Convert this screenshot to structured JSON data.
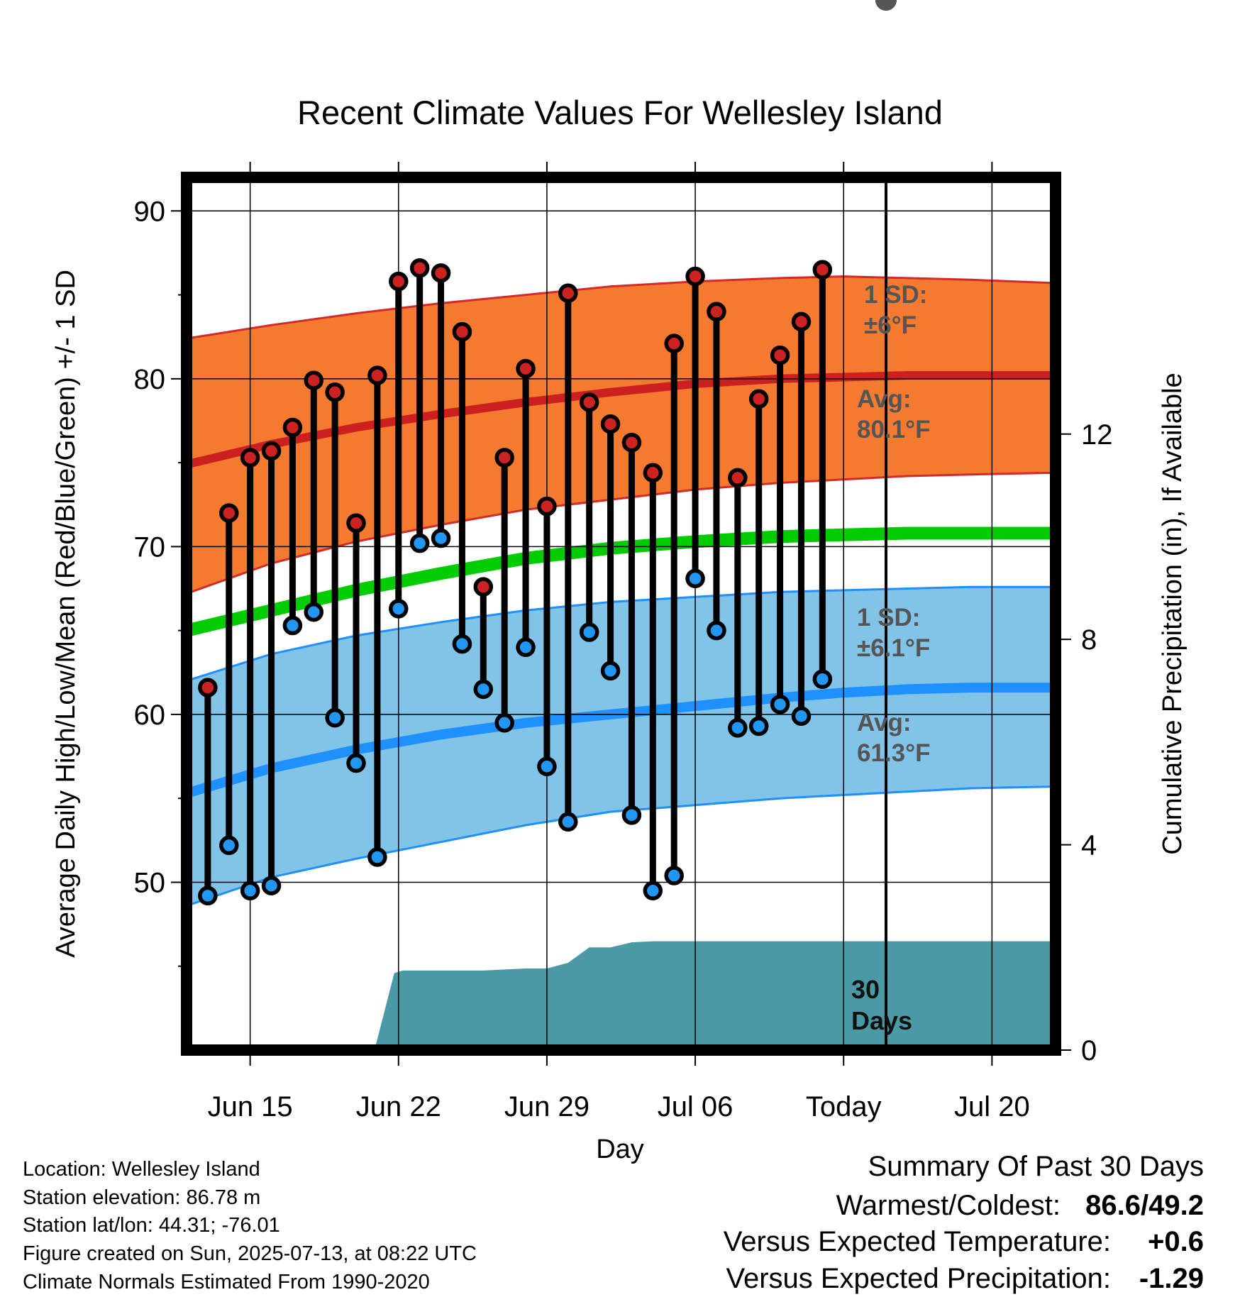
{
  "chart_data": {
    "type": "line",
    "title": "Recent Climate Values For Wellesley Island",
    "xlabel": "Day",
    "ylabel": "Average Daily High/Low/Mean (Red/Blue/Green) +/- 1 SD",
    "y2label": "Cumulative Precipitation (in), If Available",
    "ylim": [
      40,
      92
    ],
    "y2lim": [
      0,
      17
    ],
    "x_day_range": [
      0,
      41
    ],
    "today_day": 33,
    "x_ticks": [
      {
        "day": 3,
        "label": "Jun 15"
      },
      {
        "day": 10,
        "label": "Jun 22"
      },
      {
        "day": 17,
        "label": "Jun 29"
      },
      {
        "day": 24,
        "label": "Jul 06"
      },
      {
        "day": 31,
        "label": "Today"
      },
      {
        "day": 38,
        "label": "Jul 20"
      }
    ],
    "y_ticks": [
      50,
      60,
      70,
      80,
      90
    ],
    "y2_ticks": [
      0,
      4,
      8,
      12
    ],
    "normals": {
      "days": [
        0,
        4,
        8,
        12,
        16,
        20,
        24,
        28,
        31,
        34,
        37,
        41
      ],
      "high_avg": [
        74.9,
        76.1,
        77.1,
        77.9,
        78.6,
        79.2,
        79.7,
        80.0,
        80.1,
        80.2,
        80.2,
        80.2
      ],
      "high_upper": [
        82.4,
        83.2,
        83.9,
        84.5,
        85.0,
        85.5,
        85.8,
        86.0,
        86.1,
        86.0,
        85.9,
        85.7
      ],
      "high_lower": [
        67.2,
        69.0,
        70.3,
        71.3,
        72.2,
        72.8,
        73.4,
        73.8,
        74.0,
        74.2,
        74.3,
        74.4
      ],
      "mean_avg": [
        65.0,
        66.2,
        67.4,
        68.4,
        69.3,
        69.9,
        70.3,
        70.6,
        70.7,
        70.8,
        70.8,
        70.8
      ],
      "low_avg": [
        55.3,
        56.8,
        57.9,
        58.8,
        59.5,
        60.0,
        60.5,
        61.0,
        61.3,
        61.5,
        61.6,
        61.6
      ],
      "low_upper": [
        62.0,
        63.6,
        64.7,
        65.5,
        66.2,
        66.7,
        67.0,
        67.3,
        67.4,
        67.5,
        67.6,
        67.6
      ],
      "low_lower": [
        48.6,
        50.3,
        51.4,
        52.4,
        53.4,
        54.2,
        54.6,
        55.0,
        55.2,
        55.4,
        55.6,
        55.7
      ]
    },
    "observations": {
      "days": [
        1,
        2,
        3,
        4,
        5,
        6,
        7,
        8,
        9,
        10,
        11,
        12,
        13,
        14,
        15,
        16,
        17,
        18,
        19,
        20,
        21,
        22,
        23,
        24,
        25,
        26,
        27,
        28,
        29,
        30
      ],
      "high": [
        61.6,
        72.0,
        75.3,
        75.7,
        77.1,
        79.9,
        79.2,
        71.4,
        80.2,
        85.8,
        86.6,
        86.3,
        82.8,
        67.6,
        75.3,
        80.6,
        72.4,
        85.1,
        78.6,
        77.3,
        76.2,
        74.4,
        82.1,
        86.1,
        84.0,
        74.1,
        78.8,
        81.4,
        83.4,
        86.5
      ],
      "low": [
        49.2,
        52.2,
        49.5,
        49.8,
        65.3,
        66.1,
        59.8,
        57.1,
        51.5,
        66.3,
        70.2,
        70.5,
        64.2,
        61.5,
        59.5,
        64.0,
        56.9,
        53.6,
        64.9,
        62.6,
        54.0,
        49.5,
        50.4,
        68.1,
        65.0,
        59.2,
        59.3,
        60.6,
        59.9,
        62.1
      ]
    },
    "precip": {
      "days": [
        0,
        7,
        8,
        8.9,
        9.8,
        10.2,
        11,
        12,
        13,
        14,
        15,
        16,
        17,
        18,
        19,
        20,
        21,
        22,
        23,
        41
      ],
      "values": [
        0,
        0,
        0.05,
        0.05,
        1.5,
        1.55,
        1.55,
        1.55,
        1.55,
        1.55,
        1.57,
        1.59,
        1.59,
        1.7,
        2.0,
        2.0,
        2.1,
        2.12,
        2.12,
        2.12
      ]
    },
    "band_labels": {
      "high_sd_line1": "1 SD:",
      "high_sd_line2": "±6°F",
      "high_avg_line1": "Avg:",
      "high_avg_line2": "80.1°F",
      "low_sd_line1": "1 SD:",
      "low_sd_line2": "±6.1°F",
      "low_avg_line1": "Avg:",
      "low_avg_line2": "61.3°F",
      "days_line1": "30",
      "days_line2": "Days"
    },
    "colors": {
      "high_band": "#f47a30",
      "high_band_edge": "#d42a2a",
      "high_avg": "#cc2020",
      "mean_avg": "#00cc00",
      "low_band": "#82c3e8",
      "low_band_edge": "#1e90ff",
      "low_avg": "#1e90ff",
      "high_dot": "#cc2222",
      "low_dot": "#2196f3",
      "precip": "#4a9aa5",
      "today_marker": "#555555"
    }
  },
  "info": {
    "location": "Location: Wellesley Island",
    "elevation": "Station elevation: 86.78 m",
    "latlon": "Station lat/lon: 44.31; -76.01",
    "created": "Figure created on Sun, 2025-07-13, at 08:22 UTC",
    "normals": "Climate Normals Estimated From 1990-2020"
  },
  "summary": {
    "title": "Summary Of Past 30 Days",
    "warm_cold_label": "Warmest/Coldest:",
    "warm_cold_value": "86.6/49.2",
    "temp_label": "Versus Expected Temperature:",
    "temp_value": "+0.6",
    "temp_color": "#cc2222",
    "precip_label": "Versus Expected Precipitation:",
    "precip_value": "-1.29",
    "precip_color": "#a0522d"
  }
}
